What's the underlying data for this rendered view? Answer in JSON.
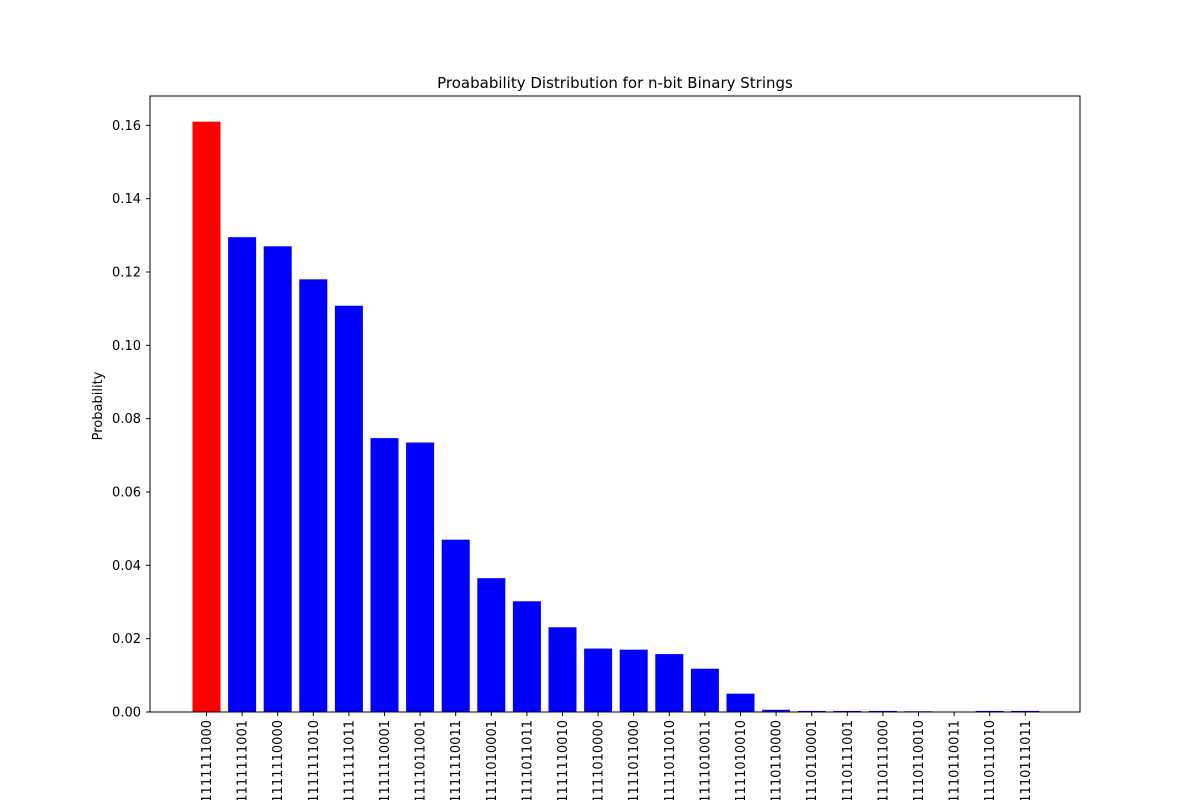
{
  "chart_data": {
    "type": "bar",
    "title": "Proabability Distribution for n-bit Binary Strings",
    "xlabel": "",
    "ylabel": "Probability",
    "ylim": [
      0,
      0.168
    ],
    "yticks": [
      "0.00",
      "0.02",
      "0.04",
      "0.06",
      "0.08",
      "0.10",
      "0.12",
      "0.14",
      "0.16"
    ],
    "grid": false,
    "highlight_color": "#ff0000",
    "bar_color": "#0000ff",
    "categories": [
      "1111111000",
      "1111111001",
      "1111110000",
      "1111111010",
      "1111111011",
      "1111110001",
      "1111011001",
      "1111110011",
      "1111010001",
      "1111011011",
      "1111110010",
      "1111010000",
      "1111011000",
      "1111011010",
      "1111010011",
      "1111010010",
      "1110110000",
      "1110110001",
      "1110111001",
      "1110111000",
      "1110110010",
      "1110110011",
      "1110111010",
      "1110111011"
    ],
    "values": [
      0.161,
      0.1295,
      0.127,
      0.118,
      0.1108,
      0.0747,
      0.0735,
      0.047,
      0.0365,
      0.0302,
      0.0231,
      0.0173,
      0.017,
      0.0158,
      0.0118,
      0.005,
      0.0006,
      0.0003,
      0.0003,
      0.0003,
      0.0002,
      0.0001,
      0.0003,
      0.0003
    ],
    "colors": [
      "#ff0000",
      "#0000ff",
      "#0000ff",
      "#0000ff",
      "#0000ff",
      "#0000ff",
      "#0000ff",
      "#0000ff",
      "#0000ff",
      "#0000ff",
      "#0000ff",
      "#0000ff",
      "#0000ff",
      "#0000ff",
      "#0000ff",
      "#0000ff",
      "#0000ff",
      "#0000ff",
      "#0000ff",
      "#0000ff",
      "#0000ff",
      "#0000ff",
      "#0000ff",
      "#0000ff"
    ]
  }
}
